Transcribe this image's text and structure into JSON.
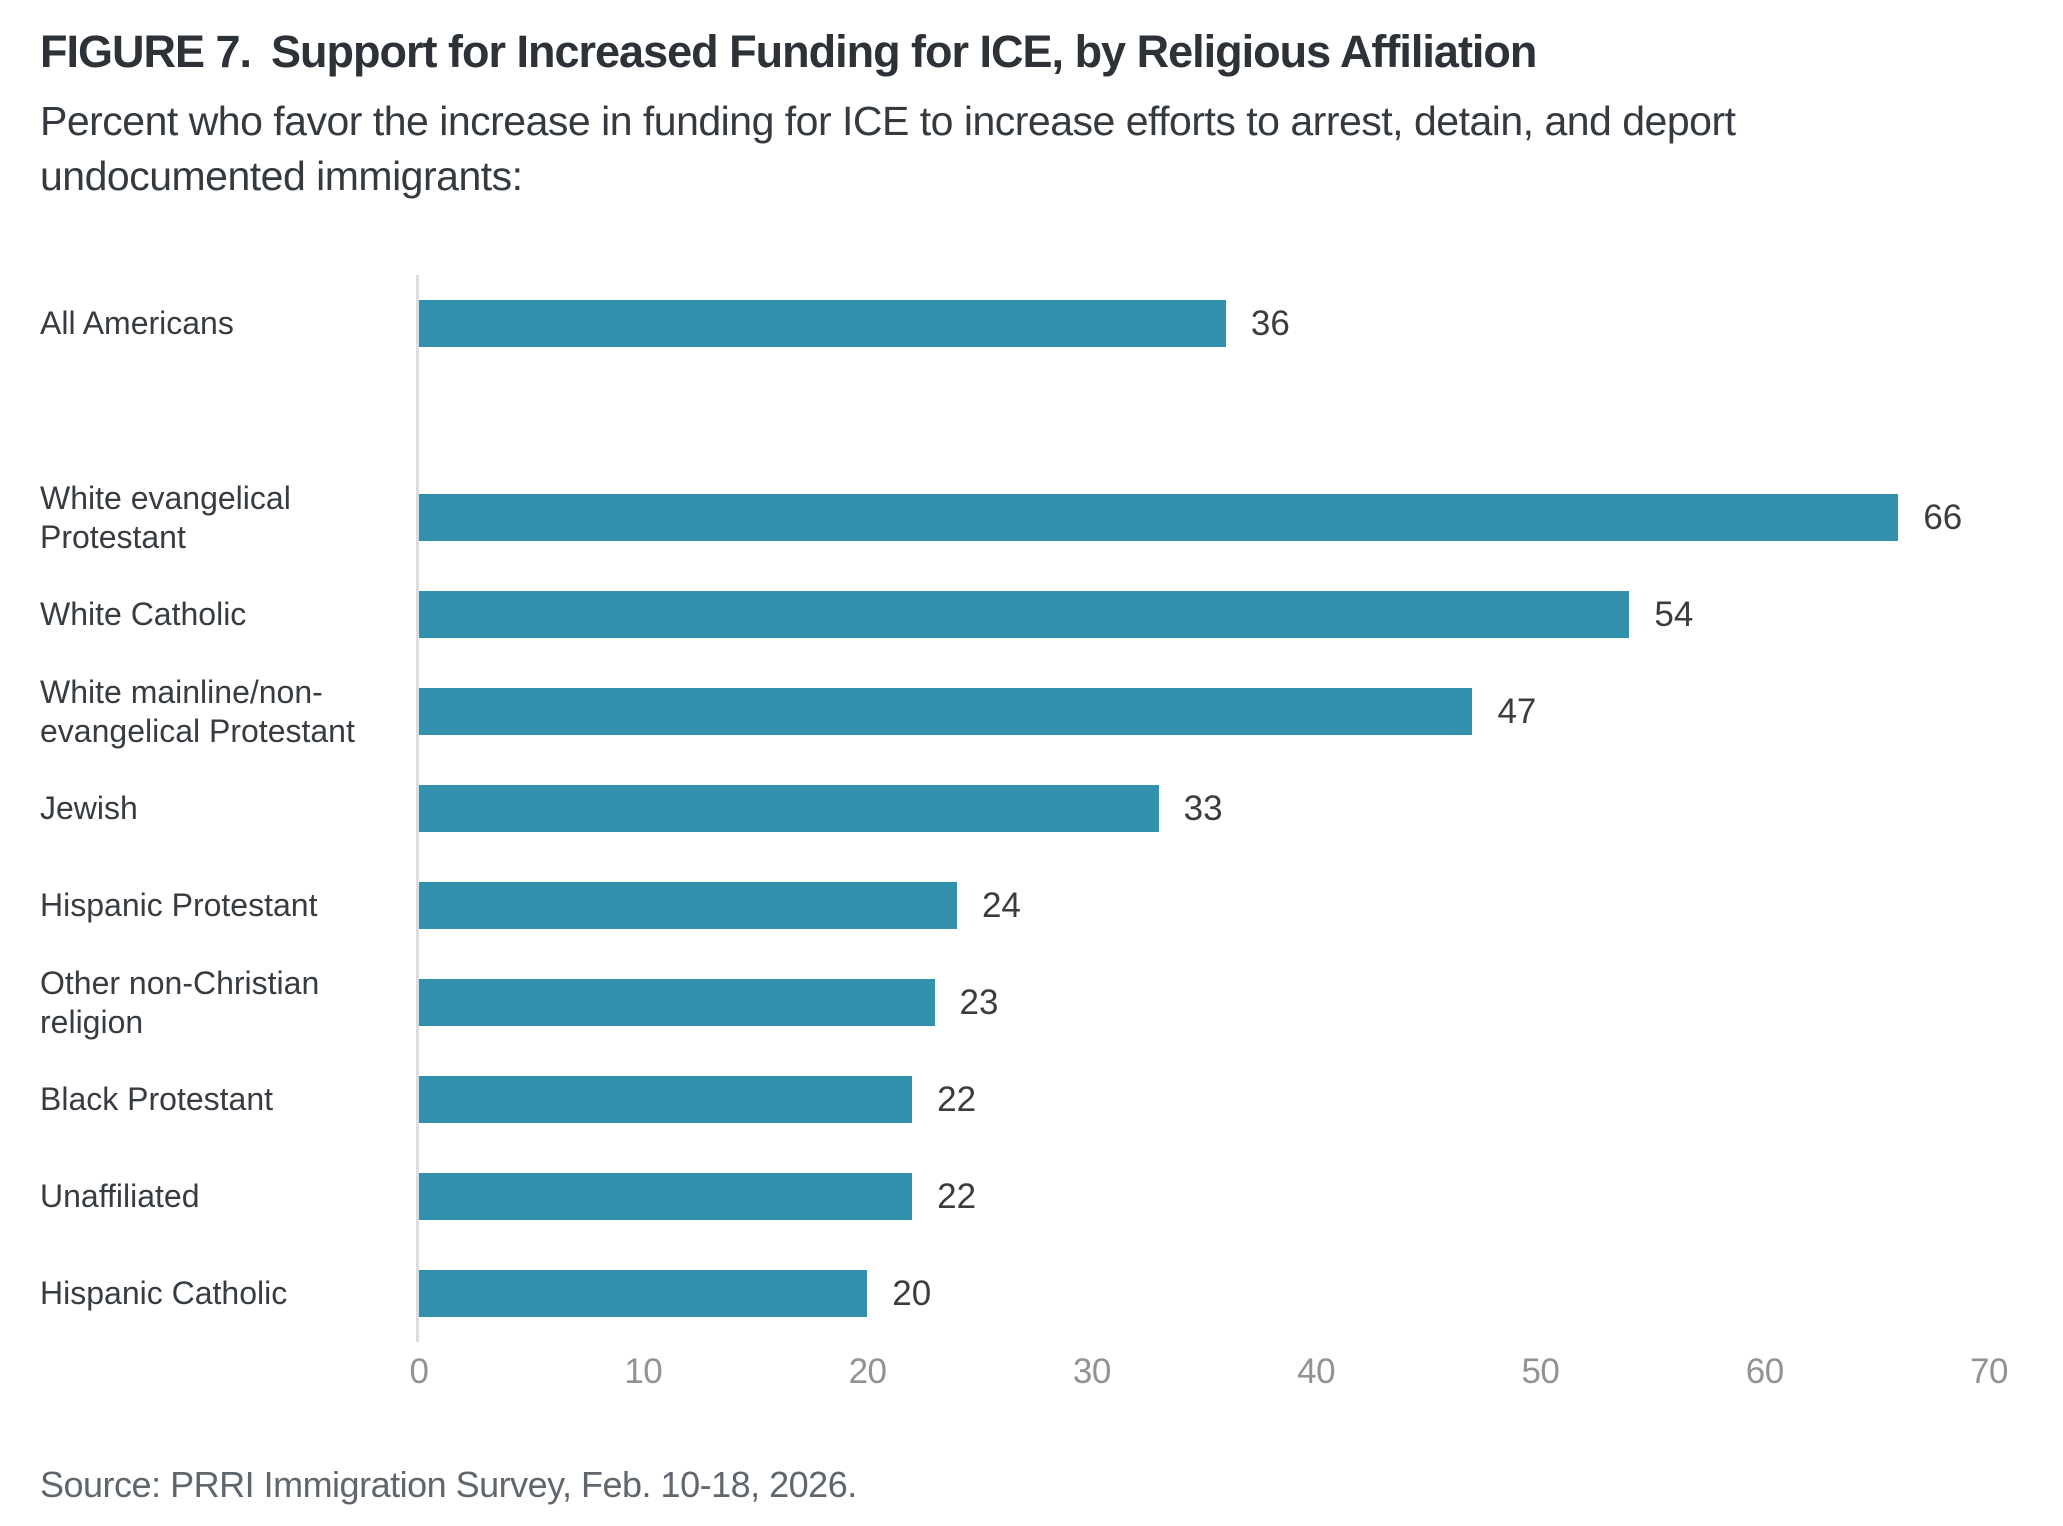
{
  "header": {
    "figure_label": "FIGURE 7.",
    "title": "Support for Increased Funding for ICE, by Religious Affiliation",
    "subtitle_line1": "Percent who favor the increase in funding for ICE to increase efforts to arrest, detain, and deport",
    "subtitle_line2": "undocumented immigrants:"
  },
  "chart_data": {
    "type": "bar",
    "orientation": "horizontal",
    "title": "FIGURE 7. Support for Increased Funding for ICE, by Religious Affiliation",
    "subtitle": "Percent who favor the increase in funding for ICE to increase efforts to arrest, detain, and deport undocumented immigrants:",
    "categories": [
      "All Americans",
      "White evangelical Protestant",
      "White Catholic",
      "White mainline/non-evangelical Protestant",
      "Jewish",
      "Hispanic Protestant",
      "Other non-Christian religion",
      "Black Protestant",
      "Unaffiliated",
      "Hispanic Catholic"
    ],
    "values": [
      36,
      66,
      54,
      47,
      33,
      24,
      23,
      22,
      22,
      20
    ],
    "spacer_after_index": 0,
    "xlabel": "",
    "ylabel": "",
    "xlim": [
      0,
      70
    ],
    "xticks": [
      0,
      10,
      20,
      30,
      40,
      50,
      60,
      70
    ],
    "grid": false,
    "legend": false,
    "bar_color": "#3292ae",
    "value_label_color": "#3c3c3c",
    "tick_label_color": "#8f9296",
    "axis_line_color": "#dcdddf"
  },
  "footer": {
    "source": "Source: PRRI Immigration Survey, Feb. 10-18, 2026."
  }
}
